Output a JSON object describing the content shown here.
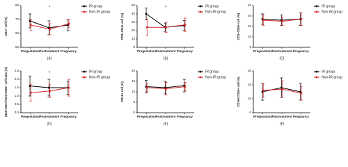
{
  "chart_data": [
    {
      "type": "line",
      "panel_label": "(A)",
      "y_label": "CD3+ cell (%)",
      "categories": [
        "Pregestation",
        "Postreatment",
        "Pregnancy"
      ],
      "annotation": "*",
      "ylim": [
        50,
        80
      ],
      "yticks": [
        50,
        60,
        70,
        80
      ],
      "series": [
        {
          "name": "IR group",
          "color": "#000000",
          "values": [
            69,
            64,
            66
          ],
          "errors": [
            5,
            5,
            4
          ]
        },
        {
          "name": "Non-IR group",
          "color": "#d62728",
          "values": [
            66,
            63,
            67
          ],
          "errors": [
            4,
            4,
            3
          ]
        }
      ]
    },
    {
      "type": "line",
      "panel_label": "(B)",
      "y_label": "CD3+CD4+ cell (%)",
      "categories": [
        "Pregestation",
        "Postreatment",
        "Pregnancy"
      ],
      "annotation": "*",
      "ylim": [
        0,
        50
      ],
      "yticks": [
        0,
        10,
        20,
        30,
        40,
        50
      ],
      "series": [
        {
          "name": "IR group",
          "color": "#000000",
          "values": [
            40,
            24,
            26
          ],
          "errors": [
            7,
            5,
            6
          ]
        },
        {
          "name": "Non-IR group",
          "color": "#d62728",
          "values": [
            24,
            24,
            27
          ],
          "errors": [
            10,
            6,
            8
          ]
        }
      ]
    },
    {
      "type": "line",
      "panel_label": "(C)",
      "y_label": "CD3+CD8+ cell (%)",
      "categories": [
        "Pregestation",
        "Postreatment",
        "Pregnancy"
      ],
      "ylim": [
        0,
        40
      ],
      "yticks": [
        0,
        10,
        20,
        30,
        40
      ],
      "series": [
        {
          "name": "IR group",
          "color": "#000000",
          "values": [
            27,
            26,
            27
          ],
          "errors": [
            5,
            5,
            6
          ]
        },
        {
          "name": "Non-IR group",
          "color": "#d62728",
          "values": [
            26,
            25,
            27
          ],
          "errors": [
            5,
            4,
            6
          ]
        }
      ]
    },
    {
      "type": "line",
      "panel_label": "(D)",
      "y_label": "CD3+CD4+/CD3+CD8+ cell ratio (%)",
      "categories": [
        "Pregestation",
        "Postreatment",
        "Pregnancy"
      ],
      "annotation": "*",
      "ylim": [
        0,
        2.5
      ],
      "yticks": [
        {
          "value": 0,
          "label": "0.0"
        },
        0.5,
        {
          "value": 1,
          "label": "1.0"
        },
        1.5,
        {
          "value": 2,
          "label": "2.0"
        },
        2.5
      ],
      "series": [
        {
          "name": "IR group",
          "color": "#000000",
          "values": [
            1.6,
            1.5,
            1.5
          ],
          "errors": [
            0.6,
            0.5,
            0.4
          ]
        },
        {
          "name": "Non-IR group",
          "color": "#d62728",
          "values": [
            1.2,
            1.3,
            1.5
          ],
          "errors": [
            0.5,
            0.4,
            0.5
          ]
        }
      ]
    },
    {
      "type": "line",
      "panel_label": "(E)",
      "y_label": "CD19+ cell (%)",
      "categories": [
        "Pregestation",
        "Postreatment",
        "Pregnancy"
      ],
      "ylim": [
        0,
        20
      ],
      "yticks": [
        0,
        5,
        10,
        15,
        20
      ],
      "series": [
        {
          "name": "IR group",
          "color": "#000000",
          "values": [
            12.5,
            12,
            13
          ],
          "errors": [
            3,
            3,
            3
          ]
        },
        {
          "name": "Non-IR group",
          "color": "#d62728",
          "values": [
            12,
            11.5,
            12.5
          ],
          "errors": [
            2,
            3,
            2
          ]
        }
      ]
    },
    {
      "type": "line",
      "panel_label": "(F)",
      "y_label": "CD16+CD56+ cell (%)",
      "categories": [
        "Pregestation",
        "Postreatment",
        "Pregnancy"
      ],
      "ylim": [
        0,
        30
      ],
      "yticks": [
        0,
        10,
        20,
        30
      ],
      "series": [
        {
          "name": "IR group",
          "color": "#000000",
          "values": [
            15,
            18,
            15
          ],
          "errors": [
            6,
            7,
            6
          ]
        },
        {
          "name": "Non-IR group",
          "color": "#d62728",
          "values": [
            16,
            17,
            14
          ],
          "errors": [
            5,
            6,
            5
          ]
        }
      ]
    }
  ]
}
